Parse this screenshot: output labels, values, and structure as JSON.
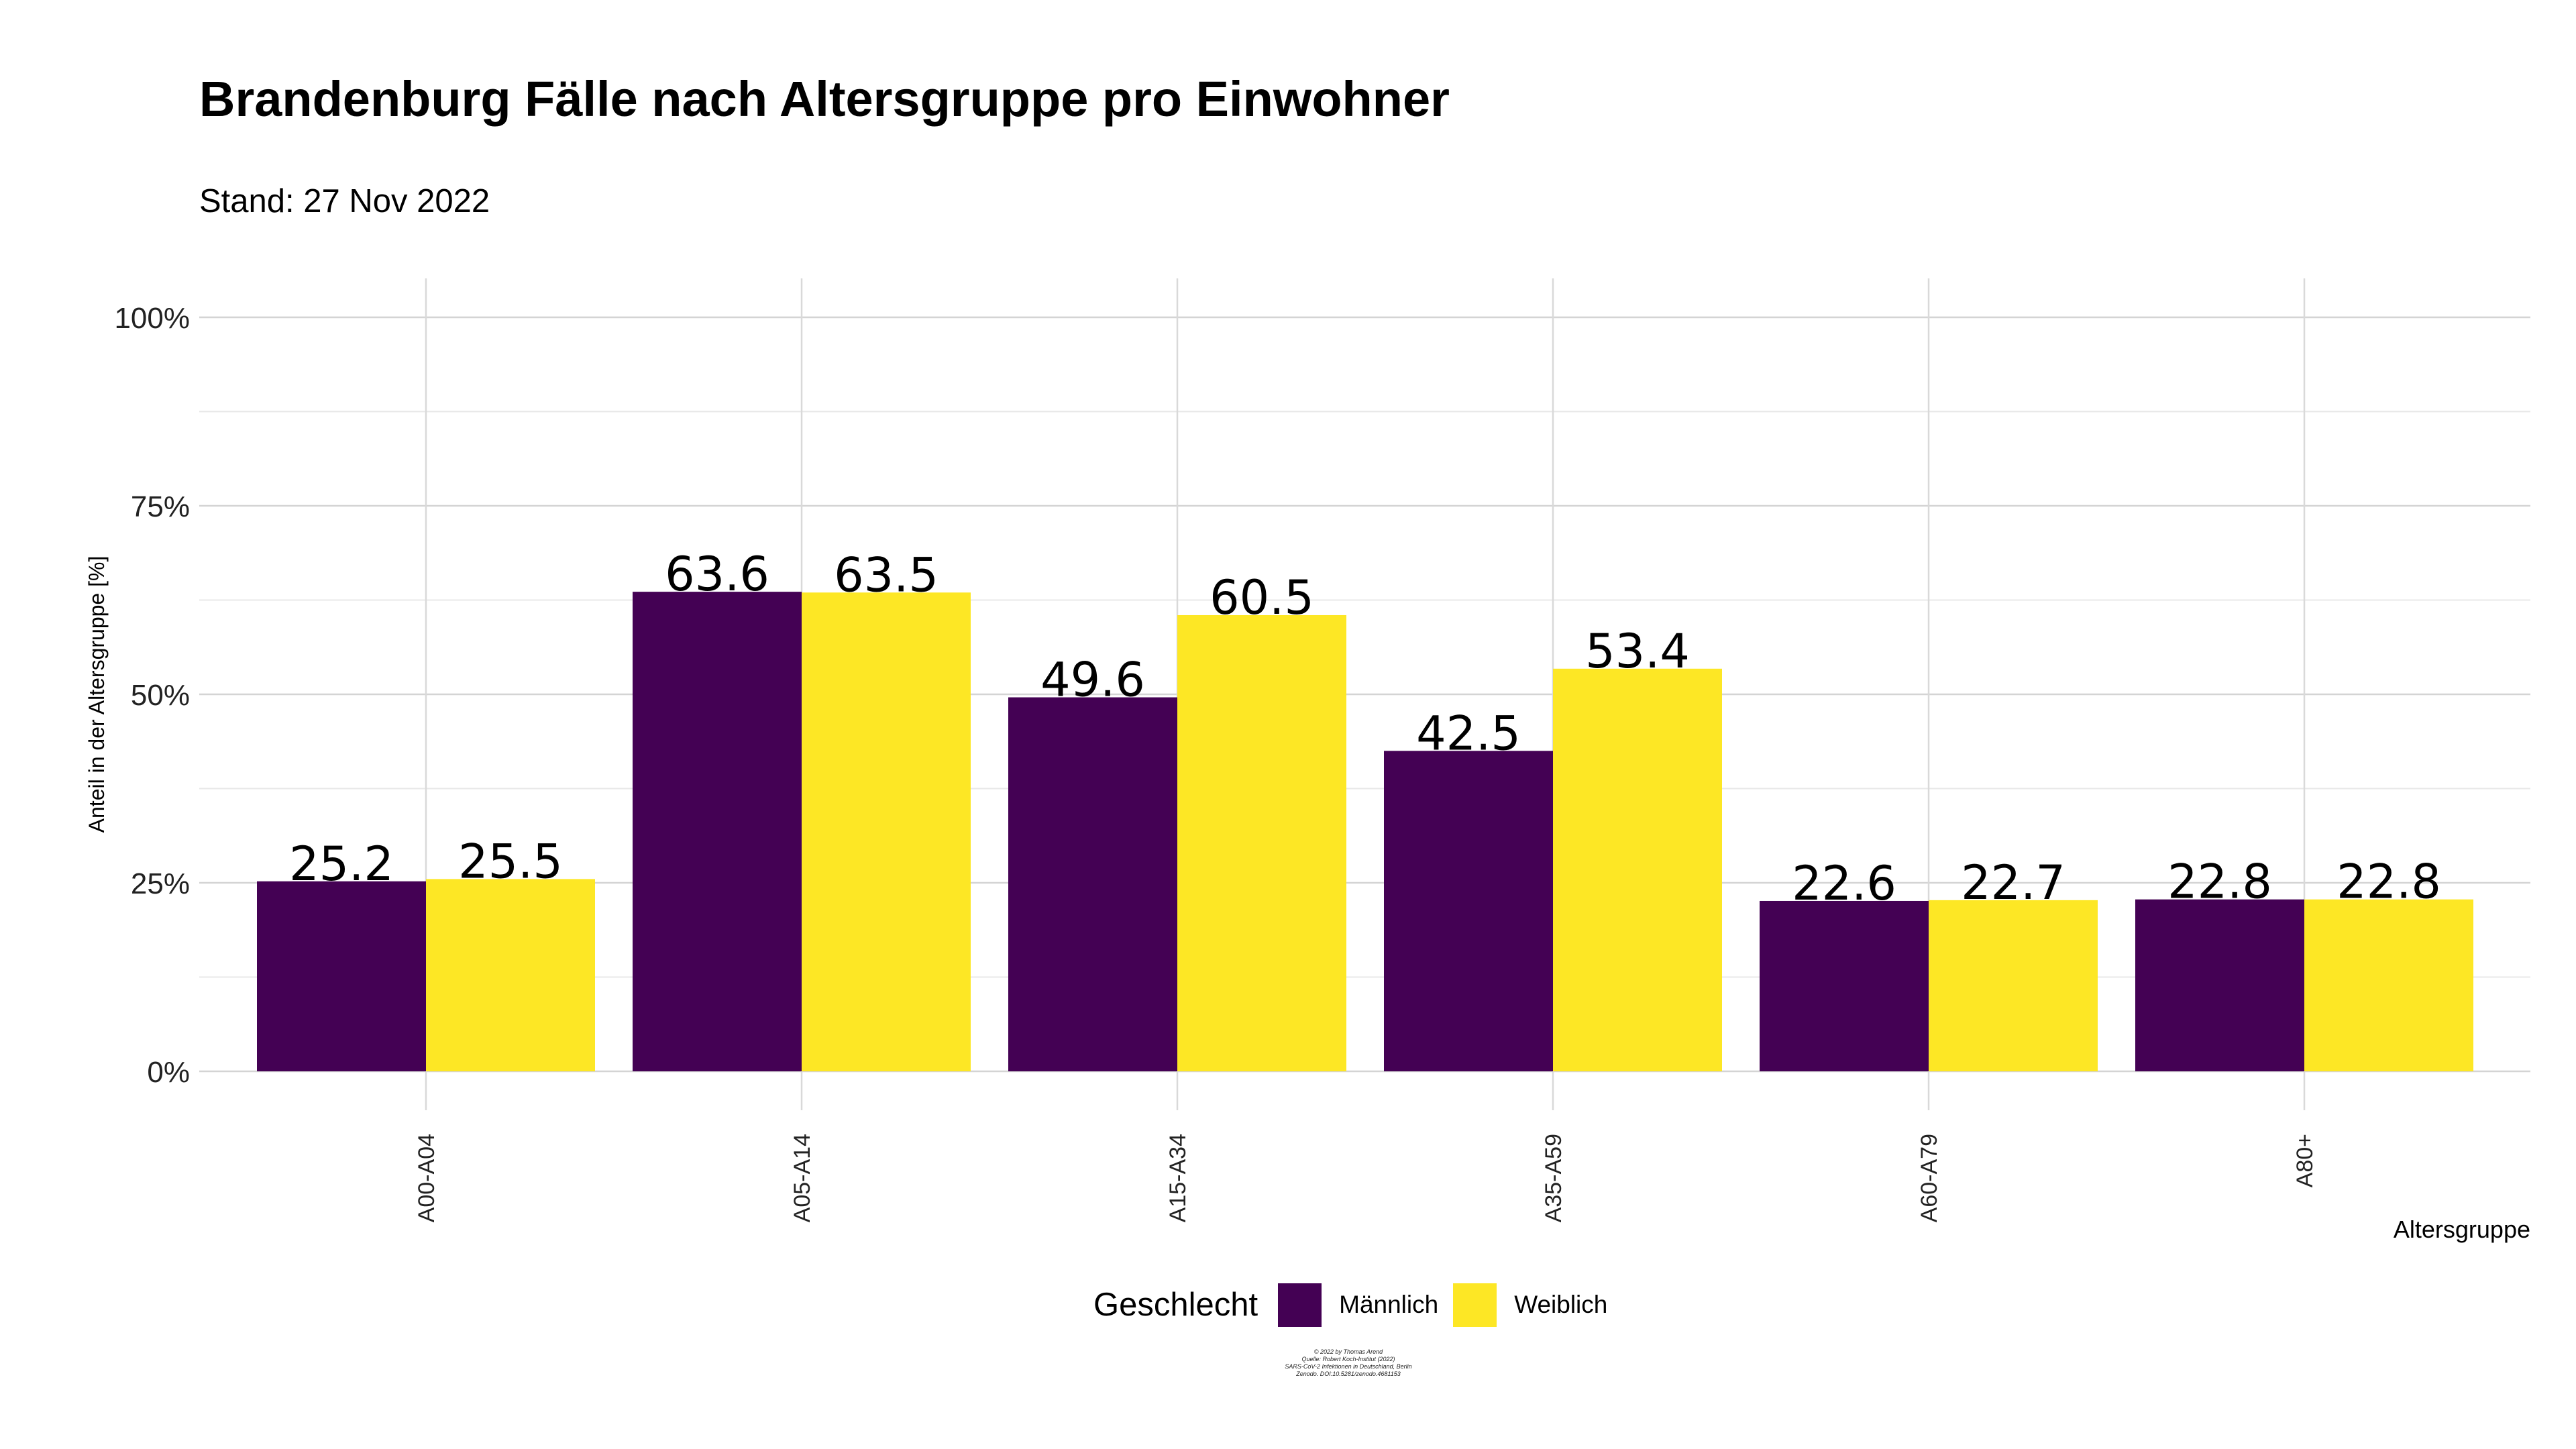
{
  "title": "Brandenburg Fälle nach Altersgruppe pro Einwohner",
  "subtitle": "Stand: 27 Nov 2022",
  "legend": {
    "title": "Geschlecht",
    "items": [
      {
        "label": "Männlich",
        "color": "#440154"
      },
      {
        "label": "Weiblich",
        "color": "#FDE725"
      }
    ]
  },
  "caption": [
    "© 2022 by Thomas Arend",
    "Quelle: Robert Koch-Institut (2022)",
    "SARS-CoV-2 Infektionen in Deutschland, Berlin",
    "Zenodo. DOI:10.5281/zenodo.4681153"
  ],
  "chart_data": {
    "type": "bar",
    "title": "Brandenburg Fälle nach Altersgruppe pro Einwohner",
    "subtitle": "Stand: 27 Nov 2022",
    "xlabel": "Altersgruppe",
    "ylabel": "Anteil in der Altersgruppe [%]",
    "ylim": [
      0,
      100
    ],
    "yticks": [
      "0%",
      "25%",
      "50%",
      "75%",
      "100%"
    ],
    "categories": [
      "A00-A04",
      "A05-A14",
      "A15-A34",
      "A35-A59",
      "A60-A79",
      "A80+"
    ],
    "series": [
      {
        "name": "Männlich",
        "color": "#440154",
        "values": [
          25.2,
          63.6,
          49.6,
          42.5,
          22.6,
          22.8
        ]
      },
      {
        "name": "Weiblich",
        "color": "#FDE725",
        "values": [
          25.5,
          63.5,
          60.5,
          53.4,
          22.7,
          22.8
        ]
      }
    ],
    "grid": true,
    "legend_position": "bottom"
  }
}
